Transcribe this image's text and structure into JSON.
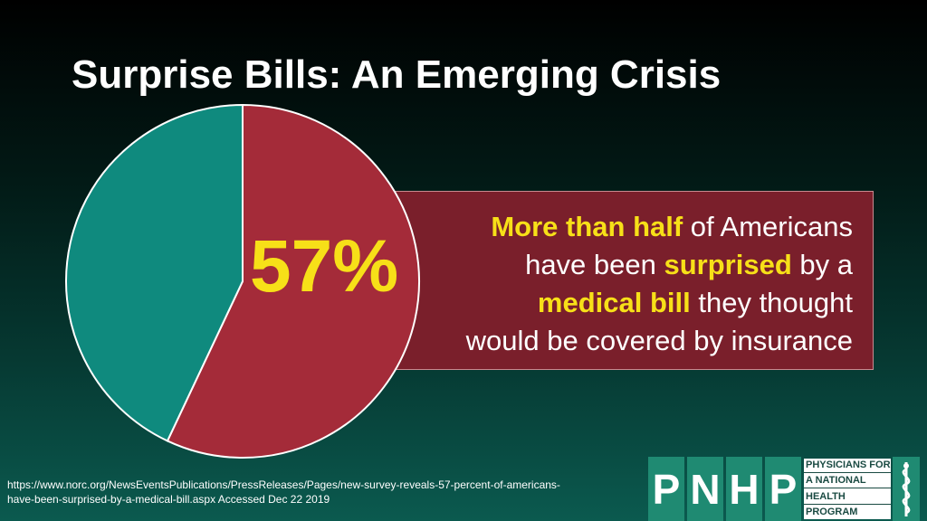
{
  "title": "Surprise Bills: An Emerging Crisis",
  "chart_data": {
    "type": "pie",
    "slices": [
      {
        "value": 57,
        "color": "#a42b39"
      },
      {
        "value": 43,
        "color": "#0f8a7e"
      }
    ],
    "center_label": "57%",
    "label_color": "#f7e018"
  },
  "callout": {
    "line1_hl": "More than half",
    "line1_rest": " of Americans",
    "line2_pre": "have been ",
    "line2_hl": "surprised",
    "line2_post": " by a",
    "line3_hl": "medical bill",
    "line3_post": " they thought",
    "line4": "would be covered by insurance"
  },
  "source": {
    "line1": "https://www.norc.org/NewsEventsPublications/PressReleases/Pages/new-survey-reveals-57-percent-of-americans-",
    "line2": "have-been-surprised-by-a-medical-bill.aspx Accessed Dec 22 2019"
  },
  "logo": {
    "letters": [
      "P",
      "N",
      "H",
      "P"
    ],
    "words": [
      "PHYSICIANS FOR",
      "A NATIONAL",
      "HEALTH",
      "PROGRAM"
    ],
    "icon": "caduceus-icon"
  }
}
